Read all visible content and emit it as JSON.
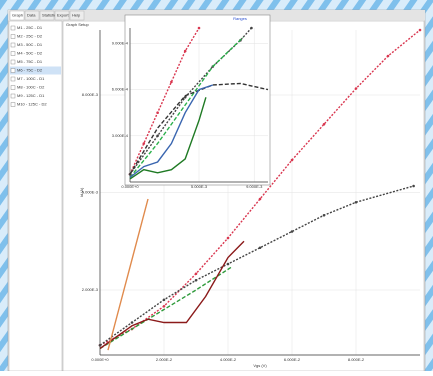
{
  "tabs": [
    "Graph",
    "Data",
    "Statistics",
    "Export",
    "Help"
  ],
  "panel_title": "Graph Setup",
  "list": [
    "M1 - 25C - D1",
    "M2 - 25C - D2",
    "M3 - 50C - D1",
    "M4 - 50C - D2",
    "M5 - 75C - D1",
    "M6 - 75C - D2",
    "M7 - 100C - D1",
    "M8 - 100C - D2",
    "M9 - 125C - D1",
    "M10 - 125C - D2"
  ],
  "selected": 5,
  "plots": [
    {
      "xlabel": "Vgs (V)",
      "ylabel": "Id (A)",
      "xlim": [
        0,
        10
      ],
      "ylim": [
        0,
        10
      ],
      "xticks": [
        {
          "value": 0,
          "label": "0.000E+0"
        },
        {
          "value": 2,
          "label": "2.000E-2"
        },
        {
          "value": 4,
          "label": "4.000E-2"
        },
        {
          "value": 6,
          "label": "6.000E-2"
        },
        {
          "value": 8,
          "label": "8.000E-2"
        }
      ],
      "yticks": [
        {
          "value": 2,
          "label": "2.000E-3"
        },
        {
          "value": 5,
          "label": "5.000E-3"
        },
        {
          "value": 8,
          "label": "8.000E-3"
        }
      ],
      "series": [
        {
          "color": "#d9364f",
          "style": "dotted",
          "x": [
            0,
            1,
            2,
            3,
            4,
            5,
            6,
            7,
            8,
            9,
            10
          ],
          "values": [
            0.3,
            0.8,
            1.5,
            2.5,
            3.6,
            4.8,
            6,
            7.1,
            8.2,
            9.2,
            10
          ]
        },
        {
          "color": "#444444",
          "style": "dotted",
          "x": [
            0,
            1,
            2,
            3,
            4,
            5,
            6,
            7,
            8,
            9.8
          ],
          "values": [
            0.3,
            1,
            1.7,
            2.3,
            2.8,
            3.3,
            3.8,
            4.3,
            4.7,
            5.2
          ]
        },
        {
          "color": "#2e9a3a",
          "style": "dashed",
          "x": [
            0,
            1,
            2,
            3,
            4.1
          ],
          "values": [
            0.2,
            0.8,
            1.4,
            2,
            2.7
          ]
        },
        {
          "color": "#8b1a1a",
          "style": "solid",
          "x": [
            0,
            1,
            1.5,
            2,
            2.7,
            3.3,
            4,
            4.5
          ],
          "values": [
            0.2,
            0.9,
            1.1,
            1,
            1,
            1.8,
            3,
            3.5
          ]
        },
        {
          "color": "#e08a4c",
          "style": "solid",
          "x": [
            0.25,
            1.5
          ],
          "values": [
            0.15,
            4.8
          ]
        }
      ]
    },
    {
      "legend": "Ranges",
      "xlim": [
        0,
        10
      ],
      "ylim": [
        0,
        10
      ],
      "xticks": [
        {
          "value": 0,
          "label": "0.000E+0"
        },
        {
          "value": 5,
          "label": "5.000E-3"
        },
        {
          "value": 9,
          "label": "9.000E-3"
        }
      ],
      "yticks": [
        {
          "value": 3,
          "label": "3.000E-4"
        },
        {
          "value": 6,
          "label": "6.000E-4"
        },
        {
          "value": 9,
          "label": "9.000E-4"
        }
      ],
      "series": [
        {
          "color": "#d9364f",
          "style": "dotted",
          "x": [
            0,
            1,
            2,
            3,
            4,
            5
          ],
          "values": [
            0.5,
            2.5,
            4.5,
            6.5,
            8.5,
            10
          ]
        },
        {
          "color": "#444444",
          "style": "dotted",
          "x": [
            0,
            2,
            4,
            6,
            8,
            8.8
          ],
          "values": [
            0.5,
            3,
            5.5,
            7.5,
            9.2,
            10
          ]
        },
        {
          "color": "#2ab04a",
          "style": "dashed",
          "x": [
            0,
            2,
            4,
            6,
            8.2
          ],
          "values": [
            0.3,
            2.5,
            5,
            7.5,
            9.4
          ]
        },
        {
          "color": "#333333",
          "style": "dashed",
          "x": [
            0,
            2,
            4,
            6,
            8,
            10
          ],
          "values": [
            0.5,
            3.5,
            5.6,
            6.3,
            6.4,
            6
          ]
        },
        {
          "color": "#3a66b0",
          "style": "solid",
          "x": [
            0,
            1,
            2,
            3,
            4,
            5,
            6
          ],
          "values": [
            0.3,
            1,
            1.3,
            2.5,
            4.5,
            6,
            6.3
          ]
        },
        {
          "color": "#1f7a24",
          "style": "solid",
          "x": [
            0,
            1,
            2,
            3,
            4,
            5,
            5.5
          ],
          "values": [
            0.2,
            0.8,
            0.6,
            0.8,
            1.5,
            4,
            5.5
          ]
        }
      ]
    }
  ]
}
